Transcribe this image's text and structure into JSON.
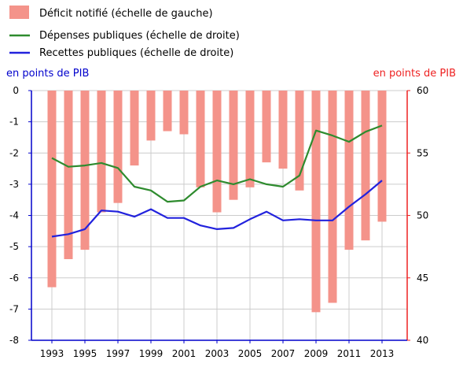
{
  "colors": {
    "deficit": "#f4938a",
    "depenses": "#2e8b2e",
    "recettes": "#2222dd",
    "left_axis": "#0000cc",
    "right_axis": "#ee2222",
    "grid": "#cccccc"
  },
  "legend": {
    "deficit": "Déficit notifié (échelle de gauche)",
    "depenses": "Dépenses publiques (échelle de droite)",
    "recettes": "Recettes publiques (échelle de droite)"
  },
  "axis_units": {
    "left": "en points de PIB",
    "right": "en points de PIB"
  },
  "chart_data": {
    "type": "bar",
    "x": [
      1993,
      1994,
      1995,
      1996,
      1997,
      1998,
      1999,
      2000,
      2001,
      2002,
      2003,
      2004,
      2005,
      2006,
      2007,
      2008,
      2009,
      2010,
      2011,
      2012,
      2013
    ],
    "x_tick_labels": [
      "1993",
      "1995",
      "1997",
      "1999",
      "2001",
      "2003",
      "2005",
      "2007",
      "2009",
      "2011",
      "2013"
    ],
    "left_axis": {
      "ylim": [
        -8,
        0
      ],
      "ticks": [
        0,
        -1,
        -2,
        -3,
        -4,
        -5,
        -6,
        -7,
        -8
      ]
    },
    "right_axis": {
      "ylim": [
        40,
        60
      ],
      "ticks": [
        60,
        55,
        50,
        45,
        40
      ]
    },
    "series": [
      {
        "name": "Déficit notifié (échelle de gauche)",
        "type": "bar",
        "axis": "left",
        "values": [
          -6.3,
          -5.4,
          -5.1,
          -3.9,
          -3.6,
          -2.4,
          -1.6,
          -1.3,
          -1.4,
          -3.1,
          -3.9,
          -3.5,
          -3.1,
          -2.3,
          -2.5,
          -3.2,
          -7.1,
          -6.8,
          -5.1,
          -4.8,
          -4.2
        ]
      },
      {
        "name": "Dépenses publiques (échelle de droite)",
        "type": "line",
        "axis": "right",
        "values": [
          54.6,
          53.9,
          54.0,
          54.2,
          53.8,
          52.3,
          52.0,
          51.1,
          51.2,
          52.3,
          52.8,
          52.5,
          52.9,
          52.5,
          52.3,
          53.2,
          56.8,
          56.4,
          55.9,
          56.7,
          57.2
        ]
      },
      {
        "name": "Recettes publiques (échelle de droite)",
        "type": "line",
        "axis": "right",
        "values": [
          48.3,
          48.5,
          48.9,
          50.4,
          50.3,
          49.9,
          50.5,
          49.8,
          49.8,
          49.2,
          48.9,
          49.0,
          49.7,
          50.3,
          49.6,
          49.7,
          49.6,
          49.6,
          50.7,
          51.7,
          52.8
        ]
      }
    ]
  }
}
